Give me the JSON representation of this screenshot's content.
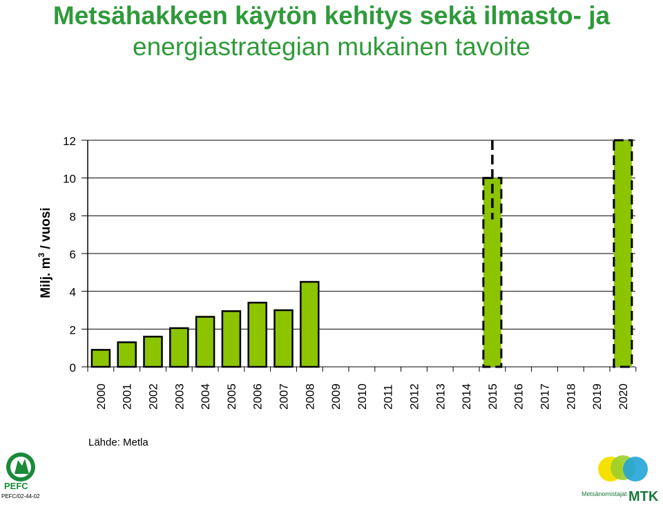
{
  "title": {
    "line1": "Metsähakkeen käytön kehitys sekä ilmasto- ja",
    "line2": "energiastrategian mukainen tavoite"
  },
  "colors": {
    "title": "#2f9a3a",
    "bar": "#8cc400",
    "bar_stroke": "#000000",
    "grid": "#000000"
  },
  "chart_data": {
    "type": "bar",
    "ylabel_main": "Milj. m",
    "ylabel_sup": "3",
    "ylabel_tail": " / vuosi",
    "ylim": [
      0,
      12
    ],
    "yticks": [
      0,
      2,
      4,
      6,
      8,
      10,
      12
    ],
    "grid": true,
    "categories": [
      "2000",
      "2001",
      "2002",
      "2003",
      "2004",
      "2005",
      "2006",
      "2007",
      "2008",
      "2009",
      "2010",
      "2011",
      "2012",
      "2013",
      "2014",
      "2015",
      "2016",
      "2017",
      "2018",
      "2019",
      "2020"
    ],
    "values": [
      0.9,
      1.3,
      1.6,
      2.05,
      2.65,
      2.95,
      3.4,
      3.0,
      4.5,
      null,
      null,
      null,
      null,
      null,
      null,
      10.0,
      null,
      null,
      null,
      null,
      12.0
    ],
    "target_categories": [
      "2015",
      "2020"
    ]
  },
  "footer": {
    "source": "Lähde: Metla",
    "pefc_label": "PEFC",
    "pefc_code": "PEFC/02-44-02",
    "mtk_org": "Metsänomistajat",
    "mtk_label": "MTK"
  }
}
